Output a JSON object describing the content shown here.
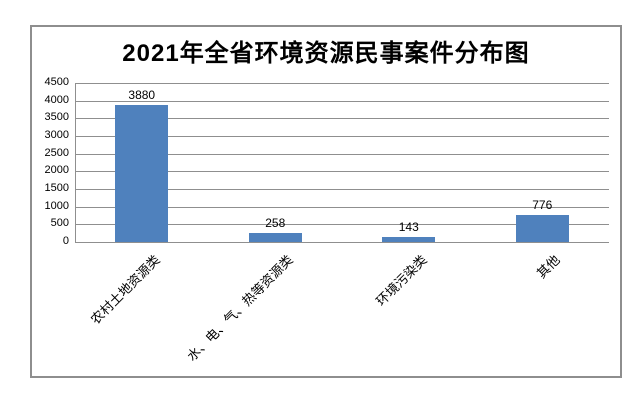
{
  "chart_data": {
    "type": "bar",
    "title": "2021年全省环境资源民事案件分布图",
    "categories": [
      "农村土地资源类",
      "水、电、气、热等资源类",
      "环境污染类",
      "其他"
    ],
    "values": [
      3880,
      258,
      143,
      776
    ],
    "data_labels": [
      "3880",
      "258",
      "143",
      "776"
    ],
    "ylim": [
      0,
      4500
    ],
    "yticks": [
      0,
      500,
      1000,
      1500,
      2000,
      2500,
      3000,
      3500,
      4000,
      4500
    ],
    "grid": true,
    "legend_position": "none",
    "xlabel": "",
    "ylabel": "",
    "colors": {
      "bar_fill": "#4f81bd",
      "gridline": "#8f8f8f",
      "axis": "#8f8f8f",
      "chart_border": "#8e8e8e",
      "text": "#000000",
      "background": "#ffffff"
    }
  }
}
